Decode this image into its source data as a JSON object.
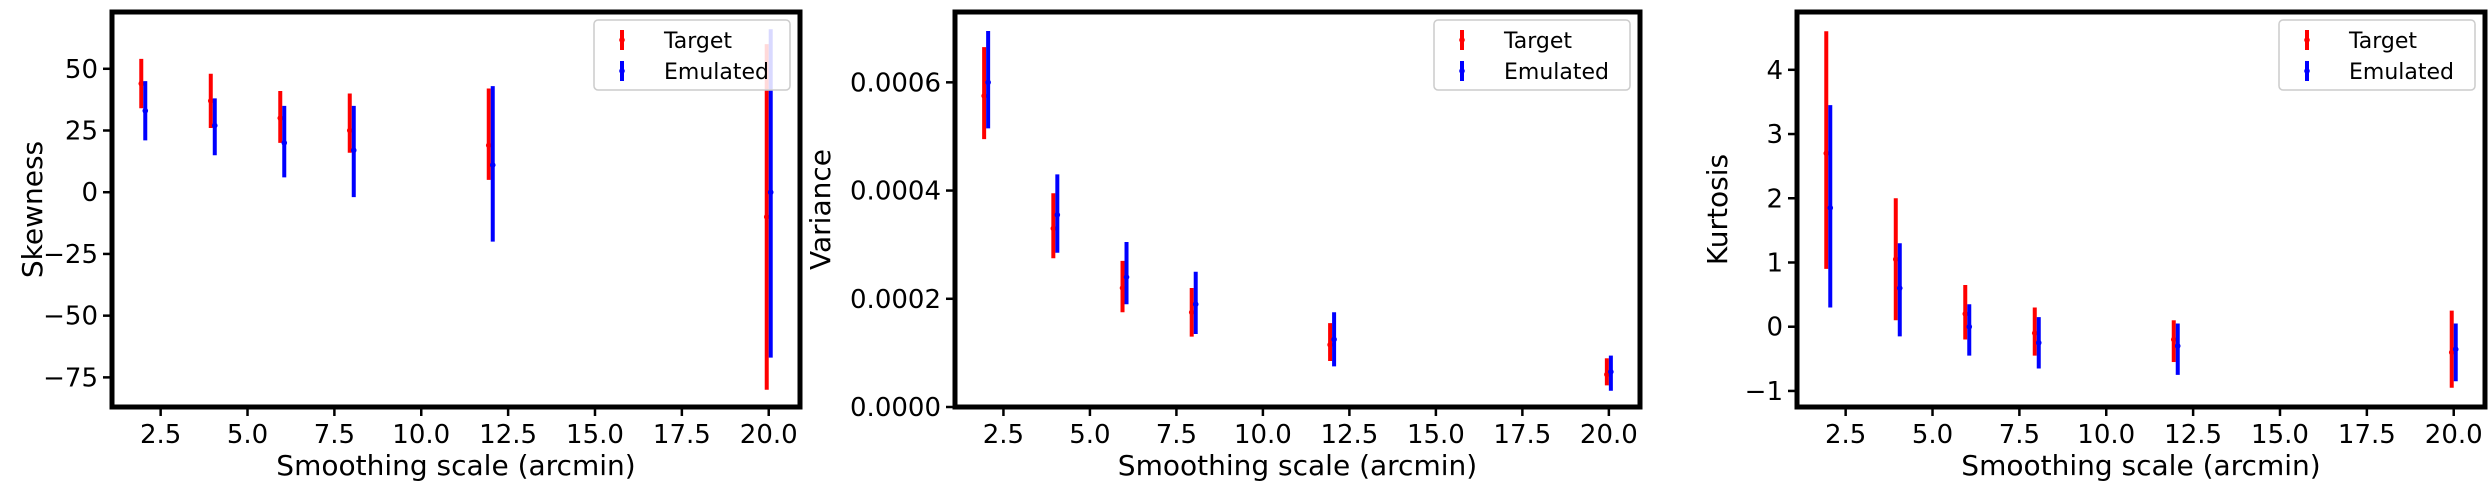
{
  "chart_data": [
    {
      "type": "errorbar",
      "xlabel": "Smoothing scale (arcmin)",
      "ylabel": "Skewness",
      "xlim": [
        1.1,
        20.9
      ],
      "ylim": [
        -87,
        73
      ],
      "xticks": [
        2.5,
        5.0,
        7.5,
        10.0,
        12.5,
        15.0,
        17.5,
        20.0
      ],
      "xtick_labels": [
        "2.5",
        "5.0",
        "7.5",
        "10.0",
        "12.5",
        "15.0",
        "17.5",
        "20.0"
      ],
      "yticks": [
        50,
        25,
        0,
        -25,
        -50,
        -75
      ],
      "ytick_labels": [
        "50",
        "25",
        "0",
        "−25",
        "−50",
        "−75"
      ],
      "legend": {
        "position": "top-right",
        "entries": [
          "Target",
          "Emulated"
        ]
      },
      "series": [
        {
          "name": "Target",
          "color": "#ff0000",
          "x": [
            2,
            4,
            6,
            8,
            12,
            20
          ],
          "y": [
            44,
            37,
            30,
            25,
            19,
            -10
          ],
          "lo": [
            34,
            26,
            20,
            16,
            5,
            -80
          ],
          "hi": [
            54,
            48,
            41,
            40,
            42,
            60
          ]
        },
        {
          "name": "Emulated",
          "color": "#0000ff",
          "x": [
            2,
            4,
            6,
            8,
            12,
            20
          ],
          "y": [
            33,
            27,
            20,
            17,
            11,
            0
          ],
          "lo": [
            21,
            15,
            6,
            -2,
            -20,
            -67
          ],
          "hi": [
            45,
            38,
            35,
            35,
            43,
            66
          ]
        }
      ]
    },
    {
      "type": "errorbar",
      "xlabel": "Smoothing scale (arcmin)",
      "ylabel": "Variance",
      "xlim": [
        1.1,
        20.9
      ],
      "ylim": [
        0,
        0.00073
      ],
      "xticks": [
        2.5,
        5.0,
        7.5,
        10.0,
        12.5,
        15.0,
        17.5,
        20.0
      ],
      "xtick_labels": [
        "2.5",
        "5.0",
        "7.5",
        "10.0",
        "12.5",
        "15.0",
        "17.5",
        "20.0"
      ],
      "yticks": [
        0.0006,
        0.0004,
        0.0002,
        0.0
      ],
      "ytick_labels": [
        "0.0006",
        "0.0004",
        "0.0002",
        "0.0000"
      ],
      "legend": {
        "position": "top-right",
        "entries": [
          "Target",
          "Emulated"
        ]
      },
      "series": [
        {
          "name": "Target",
          "color": "#ff0000",
          "x": [
            2,
            4,
            6,
            8,
            12,
            20
          ],
          "y": [
            0.000575,
            0.00033,
            0.00022,
            0.000175,
            0.000115,
            6e-05
          ],
          "lo": [
            0.000495,
            0.000275,
            0.000175,
            0.00013,
            8.5e-05,
            4e-05
          ],
          "hi": [
            0.000665,
            0.000395,
            0.00027,
            0.00022,
            0.000155,
            9e-05
          ]
        },
        {
          "name": "Emulated",
          "color": "#0000ff",
          "x": [
            2,
            4,
            6,
            8,
            12,
            20
          ],
          "y": [
            0.0006,
            0.000355,
            0.00024,
            0.00019,
            0.000125,
            6.5e-05
          ],
          "lo": [
            0.000515,
            0.000285,
            0.00019,
            0.000135,
            7.5e-05,
            3e-05
          ],
          "hi": [
            0.000695,
            0.00043,
            0.000305,
            0.00025,
            0.000175,
            9.5e-05
          ]
        }
      ]
    },
    {
      "type": "errorbar",
      "xlabel": "Smoothing scale (arcmin)",
      "ylabel": "Kurtosis",
      "xlim": [
        1.1,
        20.9
      ],
      "ylim": [
        -1.25,
        4.9
      ],
      "xticks": [
        2.5,
        5.0,
        7.5,
        10.0,
        12.5,
        15.0,
        17.5,
        20.0
      ],
      "xtick_labels": [
        "2.5",
        "5.0",
        "7.5",
        "10.0",
        "12.5",
        "15.0",
        "17.5",
        "20.0"
      ],
      "yticks": [
        4,
        3,
        2,
        1,
        0,
        -1
      ],
      "ytick_labels": [
        "4",
        "3",
        "2",
        "1",
        "0",
        "−1"
      ],
      "legend": {
        "position": "top-right",
        "entries": [
          "Target",
          "Emulated"
        ]
      },
      "series": [
        {
          "name": "Target",
          "color": "#ff0000",
          "x": [
            2,
            4,
            6,
            8,
            12,
            20
          ],
          "y": [
            2.7,
            1.05,
            0.2,
            -0.1,
            -0.2,
            -0.4
          ],
          "lo": [
            0.9,
            0.1,
            -0.2,
            -0.45,
            -0.55,
            -0.95
          ],
          "hi": [
            4.6,
            2.0,
            0.65,
            0.3,
            0.1,
            0.25
          ]
        },
        {
          "name": "Emulated",
          "color": "#0000ff",
          "x": [
            2,
            4,
            6,
            8,
            12,
            20
          ],
          "y": [
            1.85,
            0.6,
            0.0,
            -0.25,
            -0.3,
            -0.35
          ],
          "lo": [
            0.3,
            -0.15,
            -0.45,
            -0.65,
            -0.75,
            -0.85
          ],
          "hi": [
            3.45,
            1.3,
            0.35,
            0.15,
            0.05,
            0.05
          ]
        }
      ]
    }
  ]
}
